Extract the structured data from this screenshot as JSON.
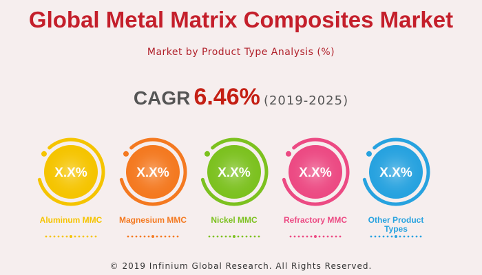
{
  "header": {
    "title": "Global Metal Matrix Composites Market",
    "subtitle": "Market by Product Type Analysis (%)"
  },
  "cagr": {
    "label": "CAGR",
    "value": "6.46%",
    "period": "(2019-2025)"
  },
  "segments": [
    {
      "label": "Aluminum MMC",
      "value": "X.X%",
      "color": "#f5c400"
    },
    {
      "label": "Magnesium MMC",
      "value": "X.X%",
      "color": "#f47920"
    },
    {
      "label": "Nickel MMC",
      "value": "X.X%",
      "color": "#7cc11f"
    },
    {
      "label": "Refractory MMC",
      "value": "X.X%",
      "color": "#ec4a83"
    },
    {
      "label": "Other Product Types",
      "value": "X.X%",
      "color": "#27a2df"
    }
  ],
  "footer": "© 2019 Infinium Global Research. All Rights Reserved."
}
